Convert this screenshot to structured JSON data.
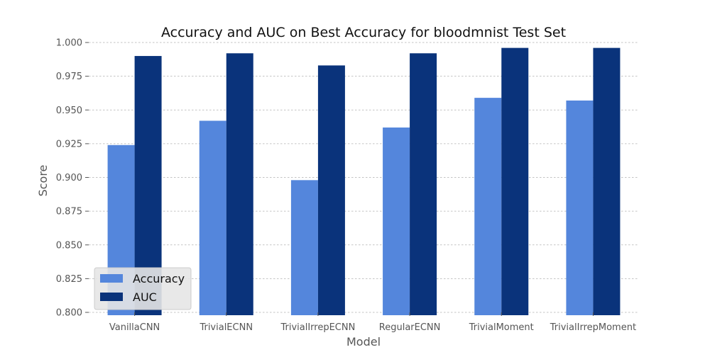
{
  "chart_data": {
    "type": "bar",
    "title": "Accuracy and AUC on Best Accuracy for bloodmnist Test Set",
    "xlabel": "Model",
    "ylabel": "Score",
    "categories": [
      "VanillaCNN",
      "TrivialECNN",
      "TrivialIrrepECNN",
      "RegularECNN",
      "TrivialMoment",
      "TrivialIrrepMoment"
    ],
    "series": [
      {
        "name": "Accuracy",
        "color": "#5486dc",
        "values": [
          0.924,
          0.942,
          0.898,
          0.937,
          0.959,
          0.957
        ]
      },
      {
        "name": "AUC",
        "color": "#0a337b",
        "values": [
          0.99,
          0.992,
          0.983,
          0.992,
          0.996,
          0.996
        ]
      }
    ],
    "ylim": [
      0.8,
      1.0
    ],
    "yticks": [
      "0.800",
      "0.825",
      "0.850",
      "0.875",
      "0.900",
      "0.925",
      "0.950",
      "0.975",
      "1.000"
    ],
    "grid": true,
    "legend_position": "lower-left"
  }
}
